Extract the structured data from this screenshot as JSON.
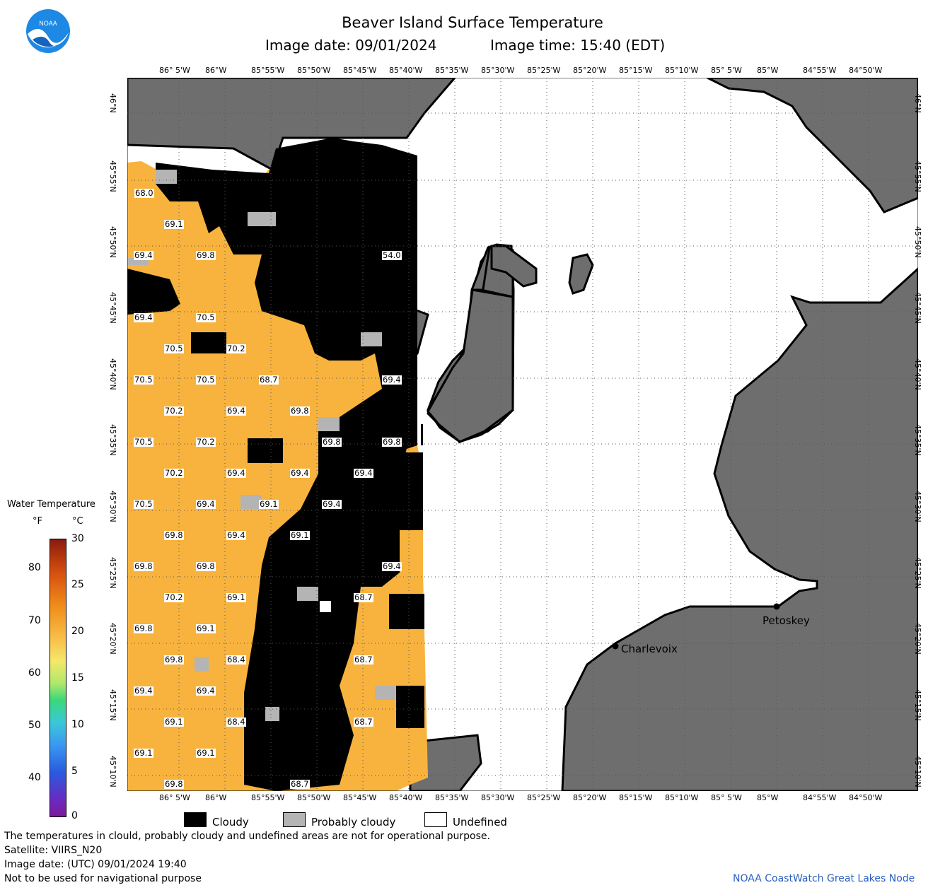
{
  "header": {
    "title": "Beaver Island Surface Temperature",
    "image_date": "Image date: 09/01/2024",
    "image_time": "Image time: 15:40 (EDT)"
  },
  "logo": {
    "text": "NOAA"
  },
  "axes": {
    "lon_ticks": [
      "86° 5'W",
      "86°W",
      "85°55'W",
      "85°50'W",
      "85°45'W",
      "85°40'W",
      "85°35'W",
      "85°30'W",
      "85°25'W",
      "85°20'W",
      "85°15'W",
      "85°10'W",
      "85° 5'W",
      "85°W",
      "84°55'W",
      "84°50'W"
    ],
    "lat_ticks": [
      "46°N",
      "45°55'N",
      "45°50'N",
      "45°45'N",
      "45°40'N",
      "45°35'N",
      "45°30'N",
      "45°25'N",
      "45°20'N",
      "45°15'N",
      "45°10'N"
    ]
  },
  "temperature_labels": [
    "68.0",
    "69.1",
    "69.4",
    "69.8",
    "54.0",
    "69.4",
    "70.5",
    "70.5",
    "70.2",
    "70.5",
    "70.5",
    "68.7",
    "69.4",
    "70.2",
    "69.4",
    "69.8",
    "70.5",
    "70.2",
    "69.8",
    "69.8",
    "70.2",
    "69.4",
    "69.4",
    "69.4",
    "70.5",
    "69.4",
    "69.1",
    "69.4",
    "69.8",
    "69.4",
    "69.1",
    "69.8",
    "69.8",
    "69.4",
    "70.2",
    "69.1",
    "68.7",
    "69.8",
    "69.1",
    "69.8",
    "68.4",
    "68.7",
    "69.4",
    "69.4",
    "69.1",
    "68.4",
    "68.7",
    "69.1",
    "69.1",
    "69.8",
    "68.7"
  ],
  "cities": [
    {
      "name": "Charlevoix"
    },
    {
      "name": "Petoskey"
    }
  ],
  "color_scale": {
    "title": "Water Temperature",
    "unit_f": "°F",
    "unit_c": "°C",
    "f_ticks": [
      "80",
      "70",
      "60",
      "50",
      "40"
    ],
    "c_ticks": [
      "30",
      "25",
      "20",
      "15",
      "10",
      "5",
      "0"
    ]
  },
  "legend": {
    "cloudy": "Cloudy",
    "probably_cloudy": "Probably cloudy",
    "undefined": "Undefined"
  },
  "colors": {
    "land": "#6e6e6e",
    "water_warm": "#f8b33e",
    "cloud": "#000000",
    "probably_cloudy": "#b4b4b4",
    "undefined": "#ffffff"
  },
  "footer": {
    "line1": "The temperatures in clould, probably cloudy and undefined areas are not for operational purpose.",
    "line2": "Satellite: VIIRS_N20",
    "line3": "Image date: (UTC) 09/01/2024  19:40",
    "line4": "Not to be used for navigational purpose",
    "credit": "NOAA CoastWatch Great Lakes Node"
  }
}
